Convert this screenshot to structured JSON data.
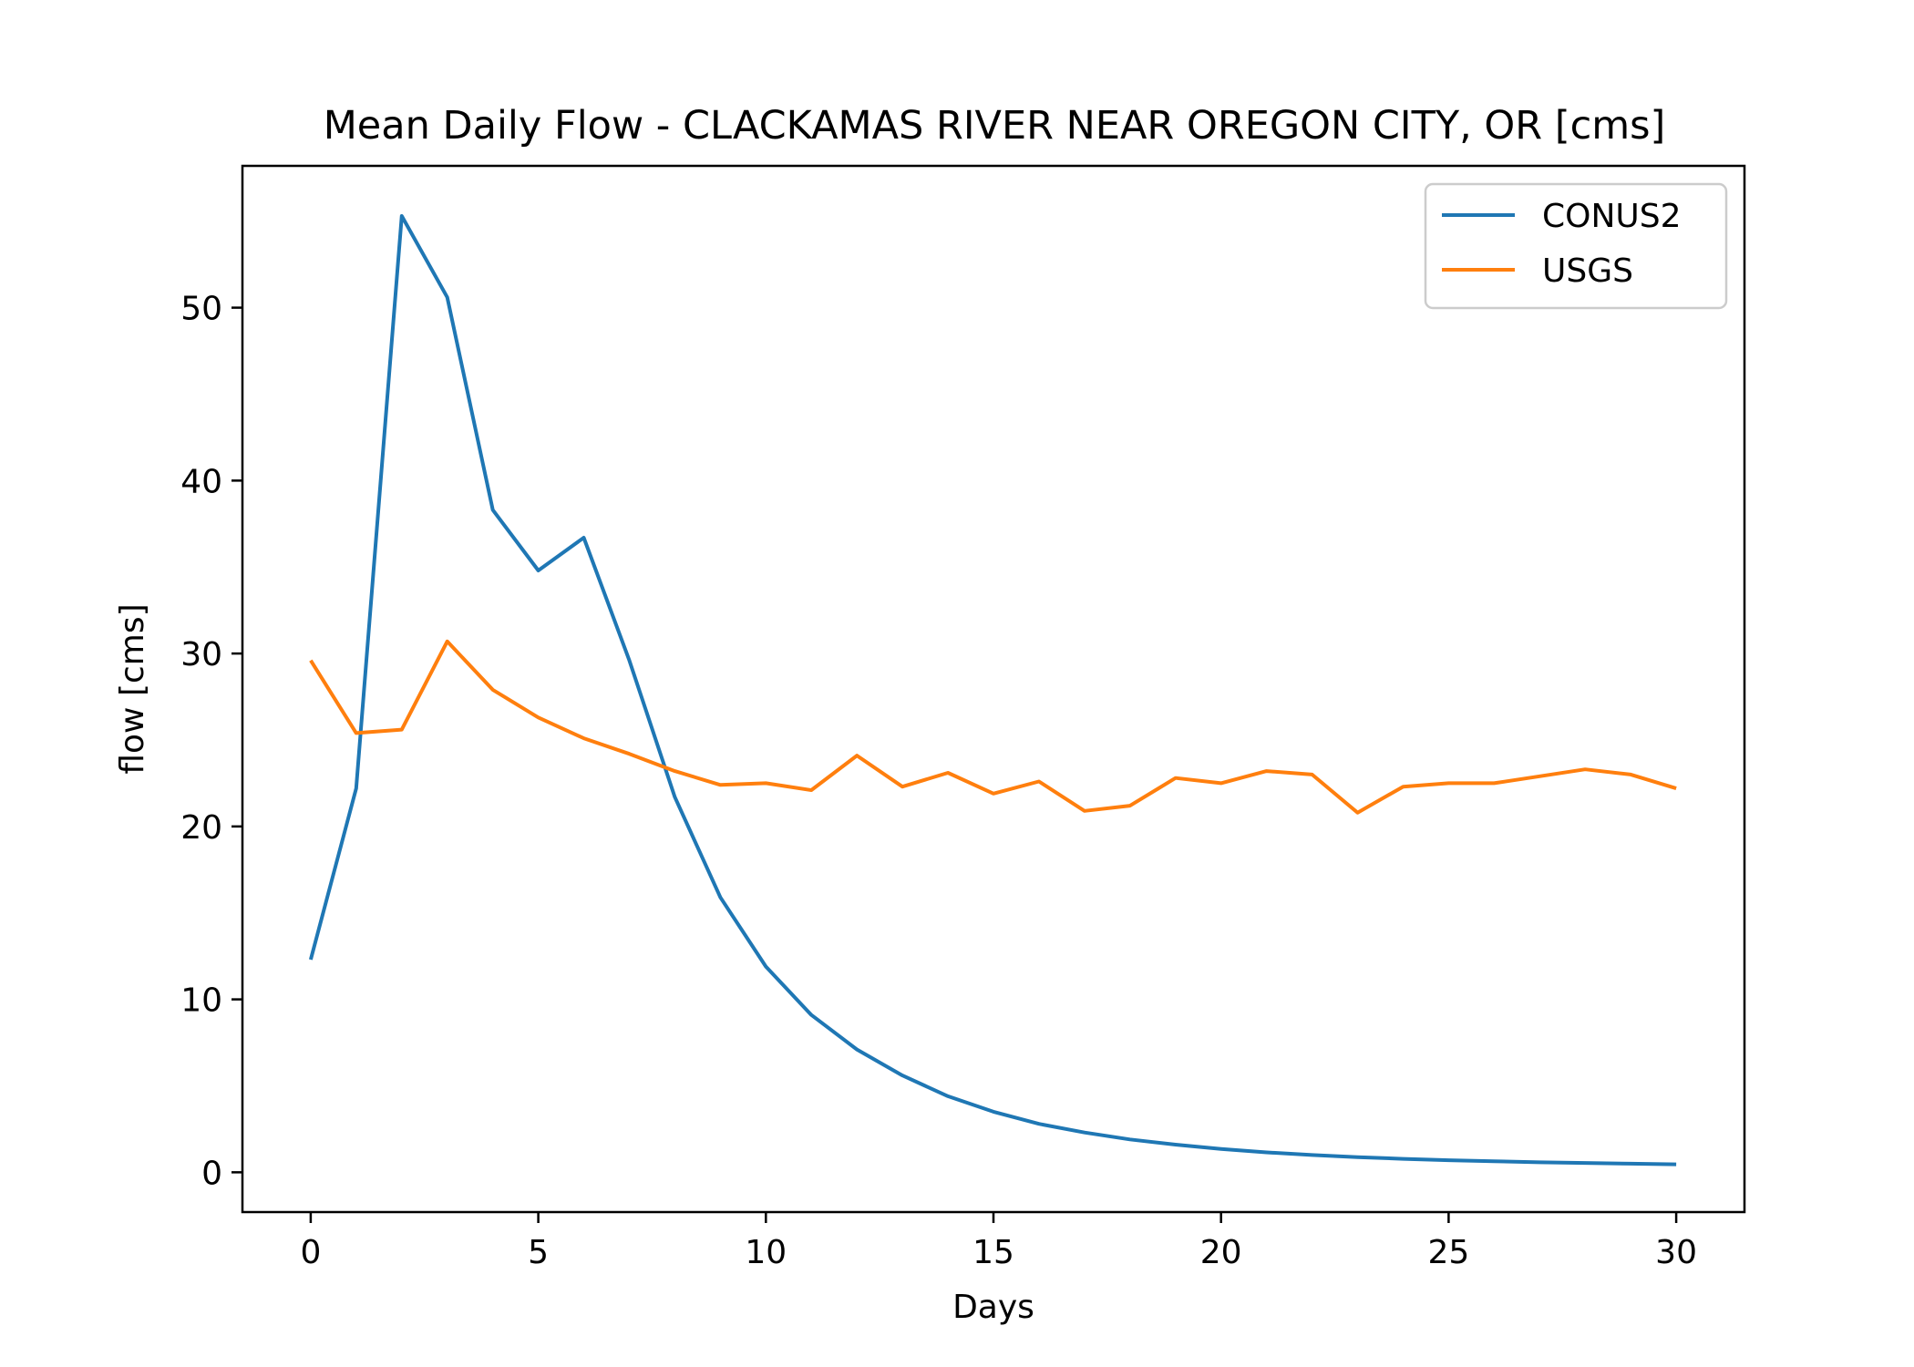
{
  "chart_data": {
    "type": "line",
    "title": "Mean Daily Flow - CLACKAMAS RIVER NEAR OREGON CITY, OR [cms]",
    "xlabel": "Days",
    "ylabel": "flow [cms]",
    "xlim": [
      -1.5,
      31.5
    ],
    "ylim": [
      -2.3,
      58.2
    ],
    "xticks": [
      0,
      5,
      10,
      15,
      20,
      25,
      30
    ],
    "yticks": [
      0,
      10,
      20,
      30,
      40,
      50
    ],
    "grid": false,
    "legend": "top-right",
    "x": [
      0,
      1,
      2,
      3,
      4,
      5,
      6,
      7,
      8,
      9,
      10,
      11,
      12,
      13,
      14,
      15,
      16,
      17,
      18,
      19,
      20,
      21,
      22,
      23,
      24,
      25,
      26,
      27,
      28,
      29,
      30
    ],
    "series": [
      {
        "name": "CONUS2",
        "color": "#1f77b4",
        "values": [
          12.3,
          22.2,
          55.3,
          50.6,
          38.3,
          34.8,
          36.7,
          29.6,
          21.7,
          15.9,
          11.9,
          9.1,
          7.1,
          5.6,
          4.4,
          3.5,
          2.8,
          2.3,
          1.9,
          1.6,
          1.35,
          1.15,
          1.0,
          0.88,
          0.78,
          0.7,
          0.64,
          0.58,
          0.54,
          0.5,
          0.46
        ]
      },
      {
        "name": "USGS",
        "color": "#ff7f0e",
        "values": [
          29.6,
          25.4,
          25.6,
          30.7,
          27.9,
          26.3,
          25.1,
          24.2,
          23.2,
          22.4,
          22.5,
          22.1,
          24.1,
          22.3,
          23.1,
          21.9,
          22.6,
          20.9,
          21.2,
          22.8,
          22.5,
          23.2,
          23.0,
          20.8,
          22.3,
          22.5,
          22.5,
          22.9,
          23.3,
          23.0,
          22.2
        ]
      }
    ]
  }
}
